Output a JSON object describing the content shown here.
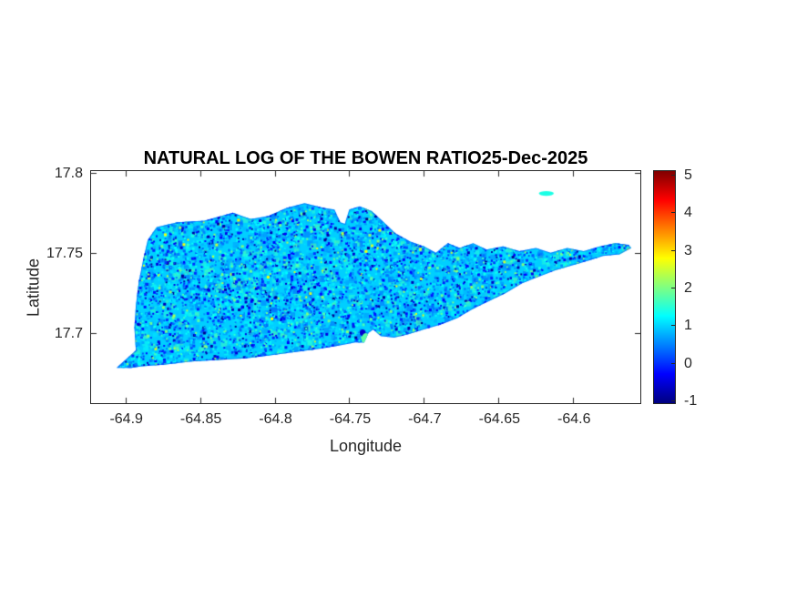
{
  "style": {
    "background": "#ffffff",
    "axis_color": "#262626",
    "title_color": "#000000"
  },
  "chart_data": {
    "type": "heatmap",
    "title": "NATURAL LOG OF THE BOWEN RATIO25-Dec-2025",
    "date_shown_in_title": "25-Dec-2025",
    "xlabel": "Longitude",
    "ylabel": "Latitude",
    "xlim": [
      -64.923,
      -64.555
    ],
    "ylim": [
      17.656,
      17.801
    ],
    "grid": false,
    "x_ticks": [
      {
        "value": -64.9,
        "label": "-64.9"
      },
      {
        "value": -64.85,
        "label": "-64.85"
      },
      {
        "value": -64.8,
        "label": "-64.8"
      },
      {
        "value": -64.75,
        "label": "-64.75"
      },
      {
        "value": -64.7,
        "label": "-64.7"
      },
      {
        "value": -64.65,
        "label": "-64.65"
      },
      {
        "value": -64.6,
        "label": "-64.6"
      }
    ],
    "y_ticks": [
      {
        "value": 17.8,
        "label": "17.8"
      },
      {
        "value": 17.75,
        "label": "17.75"
      },
      {
        "value": 17.7,
        "label": "17.7"
      }
    ],
    "colorbar": {
      "position": "right",
      "colormap": "jet",
      "clim": [
        -1.07,
        5.09
      ],
      "ticks": [
        {
          "value": 5,
          "label": "5"
        },
        {
          "value": 4,
          "label": "4"
        },
        {
          "value": 3,
          "label": "3"
        },
        {
          "value": 2,
          "label": "2"
        },
        {
          "value": 1,
          "label": "1"
        },
        {
          "value": 0,
          "label": "0"
        },
        {
          "value": -1,
          "label": "-1"
        }
      ]
    },
    "map": {
      "region": "island",
      "base_value": 0.95,
      "speckle_count": 9000,
      "speckle_distribution": [
        {
          "weight": 0.5,
          "min": 0.4,
          "max": 1.4
        },
        {
          "weight": 0.27,
          "min": -0.3,
          "max": 0.5
        },
        {
          "weight": 0.13,
          "min": -1.05,
          "max": -0.2
        },
        {
          "weight": 0.08,
          "min": 1.4,
          "max": 2.1
        },
        {
          "weight": 0.02,
          "min": 2.1,
          "max": 2.8
        }
      ],
      "outline_lonlat": [
        [
          -64.906,
          17.678
        ],
        [
          -64.893,
          17.689
        ],
        [
          -64.894,
          17.703
        ],
        [
          -64.893,
          17.717
        ],
        [
          -64.891,
          17.732
        ],
        [
          -64.888,
          17.746
        ],
        [
          -64.885,
          17.758
        ],
        [
          -64.879,
          17.766
        ],
        [
          -64.865,
          17.769
        ],
        [
          -64.847,
          17.77
        ],
        [
          -64.828,
          17.775
        ],
        [
          -64.816,
          17.771
        ],
        [
          -64.804,
          17.773
        ],
        [
          -64.792,
          17.778
        ],
        [
          -64.78,
          17.781
        ],
        [
          -64.767,
          17.778
        ],
        [
          -64.76,
          17.777
        ],
        [
          -64.756,
          17.769
        ],
        [
          -64.753,
          17.768
        ],
        [
          -64.75,
          17.777
        ],
        [
          -64.743,
          17.779
        ],
        [
          -64.735,
          17.776
        ],
        [
          -64.728,
          17.77
        ],
        [
          -64.719,
          17.762
        ],
        [
          -64.709,
          17.757
        ],
        [
          -64.7,
          17.754
        ],
        [
          -64.692,
          17.75
        ],
        [
          -64.684,
          17.756
        ],
        [
          -64.676,
          17.753
        ],
        [
          -64.667,
          17.756
        ],
        [
          -64.658,
          17.752
        ],
        [
          -64.647,
          17.754
        ],
        [
          -64.636,
          17.751
        ],
        [
          -64.625,
          17.753
        ],
        [
          -64.615,
          17.75
        ],
        [
          -64.604,
          17.753
        ],
        [
          -64.593,
          17.751
        ],
        [
          -64.582,
          17.754
        ],
        [
          -64.572,
          17.756
        ],
        [
          -64.563,
          17.755
        ],
        [
          -64.561,
          17.753
        ],
        [
          -64.569,
          17.749
        ],
        [
          -64.58,
          17.748
        ],
        [
          -64.59,
          17.745
        ],
        [
          -64.601,
          17.742
        ],
        [
          -64.612,
          17.739
        ],
        [
          -64.623,
          17.735
        ],
        [
          -64.634,
          17.731
        ],
        [
          -64.645,
          17.725
        ],
        [
          -64.656,
          17.72
        ],
        [
          -64.667,
          17.715
        ],
        [
          -64.678,
          17.709
        ],
        [
          -64.689,
          17.705
        ],
        [
          -64.7,
          17.702
        ],
        [
          -64.711,
          17.699
        ],
        [
          -64.72,
          17.697
        ],
        [
          -64.729,
          17.698
        ],
        [
          -64.734,
          17.702
        ],
        [
          -64.737,
          17.7
        ],
        [
          -64.74,
          17.694
        ],
        [
          -64.746,
          17.694
        ],
        [
          -64.757,
          17.692
        ],
        [
          -64.77,
          17.69
        ],
        [
          -64.786,
          17.688
        ],
        [
          -64.802,
          17.686
        ],
        [
          -64.819,
          17.684
        ],
        [
          -64.838,
          17.683
        ],
        [
          -64.856,
          17.682
        ],
        [
          -64.874,
          17.68
        ],
        [
          -64.889,
          17.679
        ],
        [
          -64.896,
          17.678
        ]
      ],
      "islets": [
        {
          "center": [
            -64.618,
            17.787
          ],
          "rx_deg": 0.005,
          "ry_deg": 0.0015,
          "value": 1.4
        }
      ],
      "hotspots": [
        {
          "center": [
            -64.741,
            17.7
          ],
          "rx_deg": 0.002,
          "ry_deg": 0.002,
          "value": -0.6
        },
        {
          "center": [
            -64.739,
            17.696
          ],
          "rx_deg": 0.0028,
          "ry_deg": 0.0038,
          "value": 1.8
        }
      ]
    }
  }
}
